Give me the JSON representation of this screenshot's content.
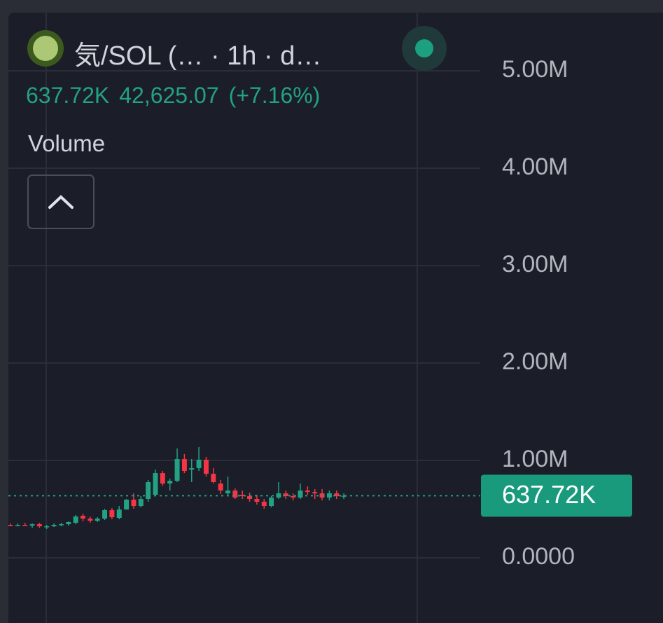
{
  "chart_data": {
    "type": "candlestick",
    "title": "気/SOL (… · 1h · d…",
    "header_price": "637.72K",
    "header_change": "42,625.07",
    "header_change_pct": "(+7.16%)",
    "indicator": "Volume",
    "up_color": "#22a283",
    "down_color": "#f23645",
    "ylim": [
      -669000,
      5597000
    ],
    "yticks": [
      {
        "value": 0,
        "label": "0.0000"
      },
      {
        "value": 1000000,
        "label": "1.00M"
      },
      {
        "value": 2000000,
        "label": "2.00M"
      },
      {
        "value": 3000000,
        "label": "3.00M"
      },
      {
        "value": 4000000,
        "label": "4.00M"
      },
      {
        "value": 5000000,
        "label": "5.00M"
      }
    ],
    "grid": true,
    "last_price": {
      "value": 637720,
      "label": "637.72K"
    },
    "open": [
      338000,
      331000,
      338000,
      331000,
      345000,
      317000,
      324000,
      338000,
      345000,
      360000,
      432000,
      403000,
      381000,
      403000,
      489000,
      410000,
      496000,
      597000,
      532000,
      604000,
      647000,
      870000,
      763000,
      791000,
      1014000,
      906000,
      921000,
      1007000,
      863000,
      763000,
      662000,
      691000,
      647000,
      633000,
      604000,
      576000,
      532000,
      619000,
      662000,
      633000,
      619000,
      691000,
      676000,
      662000,
      619000,
      662000,
      633000
    ],
    "high": [
      353000,
      353000,
      360000,
      353000,
      360000,
      338000,
      353000,
      360000,
      374000,
      439000,
      453000,
      424000,
      417000,
      504000,
      511000,
      532000,
      604000,
      662000,
      634000,
      799000,
      906000,
      892000,
      813000,
      1122000,
      1065000,
      1014000,
      1137000,
      1036000,
      921000,
      799000,
      835000,
      712000,
      691000,
      669000,
      647000,
      604000,
      634000,
      777000,
      691000,
      662000,
      763000,
      734000,
      705000,
      705000,
      691000,
      691000,
      662000
    ],
    "low": [
      324000,
      324000,
      331000,
      309000,
      309000,
      295000,
      317000,
      324000,
      331000,
      345000,
      374000,
      360000,
      367000,
      388000,
      396000,
      396000,
      496000,
      504000,
      518000,
      576000,
      633000,
      741000,
      691000,
      777000,
      870000,
      777000,
      892000,
      835000,
      763000,
      654000,
      647000,
      604000,
      604000,
      576000,
      547000,
      504000,
      518000,
      604000,
      604000,
      590000,
      604000,
      647000,
      604000,
      590000,
      590000,
      604000,
      604000
    ],
    "close": [
      331000,
      338000,
      331000,
      345000,
      324000,
      324000,
      338000,
      345000,
      367000,
      424000,
      403000,
      381000,
      403000,
      489000,
      417000,
      496000,
      597000,
      532000,
      604000,
      777000,
      870000,
      763000,
      791000,
      1014000,
      892000,
      921000,
      1007000,
      863000,
      777000,
      691000,
      691000,
      619000,
      633000,
      604000,
      576000,
      532000,
      619000,
      662000,
      633000,
      619000,
      691000,
      676000,
      662000,
      619000,
      662000,
      633000,
      637720
    ]
  }
}
